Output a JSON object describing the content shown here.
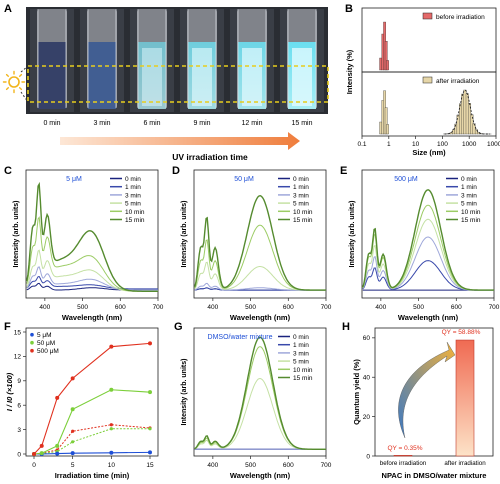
{
  "panels": {
    "A": {
      "letter": "A",
      "time_labels": [
        "0 min",
        "3 min",
        "6 min",
        "9 min",
        "12 min",
        "15 min"
      ],
      "arrow_label": "UV irradiation time"
    },
    "B": {
      "letter": "B",
      "ylabel": "Intensity (%)",
      "xlabel": "Size (nm)",
      "xticks": [
        "0.1",
        "1",
        "10",
        "100",
        "1000",
        "10000"
      ],
      "legend": [
        "before irradiation",
        "after irradiation"
      ],
      "colors": {
        "before": "#e46a6a",
        "after": "#e6d6a8"
      }
    },
    "C": {
      "letter": "C",
      "annotation": "5 μM"
    },
    "D": {
      "letter": "D",
      "annotation": "50 μM"
    },
    "E": {
      "letter": "E",
      "annotation": "500 μM"
    },
    "F": {
      "letter": "F"
    },
    "G": {
      "letter": "G",
      "annotation": "DMSO/water mixture"
    },
    "H": {
      "letter": "H"
    }
  },
  "spectra_common": {
    "xlabel": "Wavelength (nm)",
    "ylabel": "Intensity (arb. units)",
    "xticks": [
      "400",
      "500",
      "600",
      "700"
    ],
    "legend": [
      "0 min",
      "1 min",
      "3 min",
      "5 min",
      "10 min",
      "15 min"
    ],
    "colors": [
      "#1a237e",
      "#3949ab",
      "#9fa8da",
      "#c5e1a5",
      "#9ccc65",
      "#558b2f"
    ]
  },
  "chart_data": [
    {
      "panel": "F",
      "type": "line",
      "xlabel": "Irradiation time (min)",
      "ylabel": "I / I0 (×100)",
      "x": [
        0,
        1,
        3,
        5,
        10,
        15
      ],
      "xticks": [
        "0",
        "5",
        "10",
        "15"
      ],
      "yticks": [
        "0",
        "3",
        "6",
        "9",
        "12",
        "15"
      ],
      "ylim": [
        0,
        15
      ],
      "series": [
        {
          "name": "5 μM",
          "color": "#1e4fd6",
          "values": [
            0.0,
            0.0,
            0.05,
            0.1,
            0.15,
            0.2
          ]
        },
        {
          "name": "50 μM",
          "color": "#7ccf3a",
          "values": [
            0.0,
            0.1,
            1.0,
            5.5,
            7.9,
            7.6
          ]
        },
        {
          "name": "500 μM",
          "color": "#e0301e",
          "values": [
            0.0,
            1.0,
            6.9,
            9.3,
            13.2,
            13.6
          ]
        }
      ],
      "dashed_series": [
        {
          "color": "#e0301e",
          "values": [
            0.0,
            0.1,
            0.5,
            2.8,
            3.6,
            3.2
          ]
        },
        {
          "color": "#7ccf3a",
          "values": [
            0.0,
            0.05,
            0.3,
            1.5,
            3.1,
            3.1
          ]
        }
      ]
    },
    {
      "panel": "H",
      "type": "bar",
      "categories": [
        "before irradiation",
        "after irradiation"
      ],
      "values": [
        0.35,
        58.88
      ],
      "ylabel": "Quantum yield (%)",
      "xlabel": "NPAC in DMSO/water mixture",
      "yticks": [
        "0",
        "20",
        "40",
        "60"
      ],
      "ylim": [
        0,
        65
      ],
      "annotations": [
        "QY = 0.35%",
        "QY = 58.88%"
      ]
    }
  ]
}
